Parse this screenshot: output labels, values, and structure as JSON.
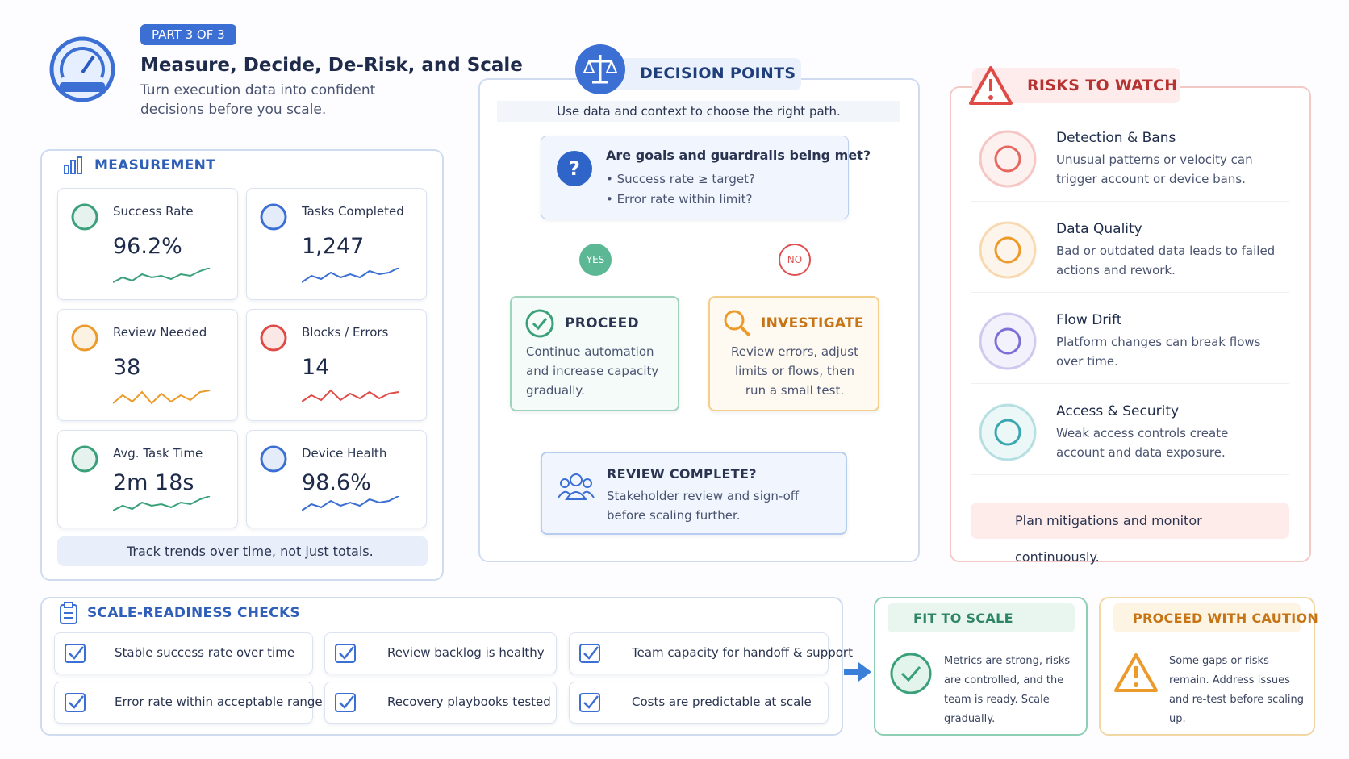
{
  "header": {
    "badge": "PART 3 OF 3",
    "title": "Measure, Decide, De-Risk, and Scale",
    "subtitle": "Turn execution data into confident decisions before you scale."
  },
  "measurement": {
    "title": "MEASUREMENT",
    "metrics": [
      {
        "label": "Success Rate",
        "value": "96.2%"
      },
      {
        "label": "Tasks Completed",
        "value": "1,247"
      },
      {
        "label": "Review Needed",
        "value": "38"
      },
      {
        "label": "Blocks / Errors",
        "value": "14"
      },
      {
        "label": "Avg. Task Time",
        "value": "2m 18s"
      },
      {
        "label": "Device Health",
        "value": "98.6%"
      }
    ],
    "tip": "Track trends over time, not just totals."
  },
  "decision": {
    "title": "DECISION POINTS",
    "intro": "Use data and context to choose the right path.",
    "question": "Are goals and guardrails being met?",
    "bullets": [
      "Success rate ≥ target?",
      "Error rate within limit?"
    ],
    "yes": "YES",
    "no": "NO",
    "proceed": {
      "title": "PROCEED",
      "text": "Continue automation and increase capacity gradually."
    },
    "investigate": {
      "title": "INVESTIGATE",
      "text": "Review errors, adjust limits or flows, then run a small test."
    },
    "review": {
      "title": "REVIEW COMPLETE?",
      "text": "Stakeholder review and sign-off before scaling further."
    }
  },
  "risks": {
    "title": "RISKS TO WATCH",
    "items": [
      {
        "title": "Detection & Bans",
        "text": "Unusual patterns or velocity can trigger account or device bans."
      },
      {
        "title": "Data Quality",
        "text": "Bad or outdated data leads to failed actions and rework."
      },
      {
        "title": "Flow Drift",
        "text": "Platform changes can break flows over time."
      },
      {
        "title": "Access & Security",
        "text": "Weak access controls create account and data exposure."
      }
    ],
    "tip": "Plan mitigations and monitor continuously."
  },
  "checks": {
    "title": "SCALE-READINESS CHECKS",
    "items": [
      "Stable success rate over time",
      "Review backlog is healthy",
      "Team capacity for handoff & support",
      "Error rate within acceptable range",
      "Recovery playbooks tested",
      "Costs are predictable at scale"
    ]
  },
  "fit": {
    "title": "FIT TO SCALE",
    "text": "Metrics are strong, risks are controlled, and the team is ready. Scale gradually."
  },
  "caution": {
    "title": "PROCEED WITH CAUTION",
    "text": "Some gaps or risks remain. Address issues and re-test before scaling up."
  }
}
